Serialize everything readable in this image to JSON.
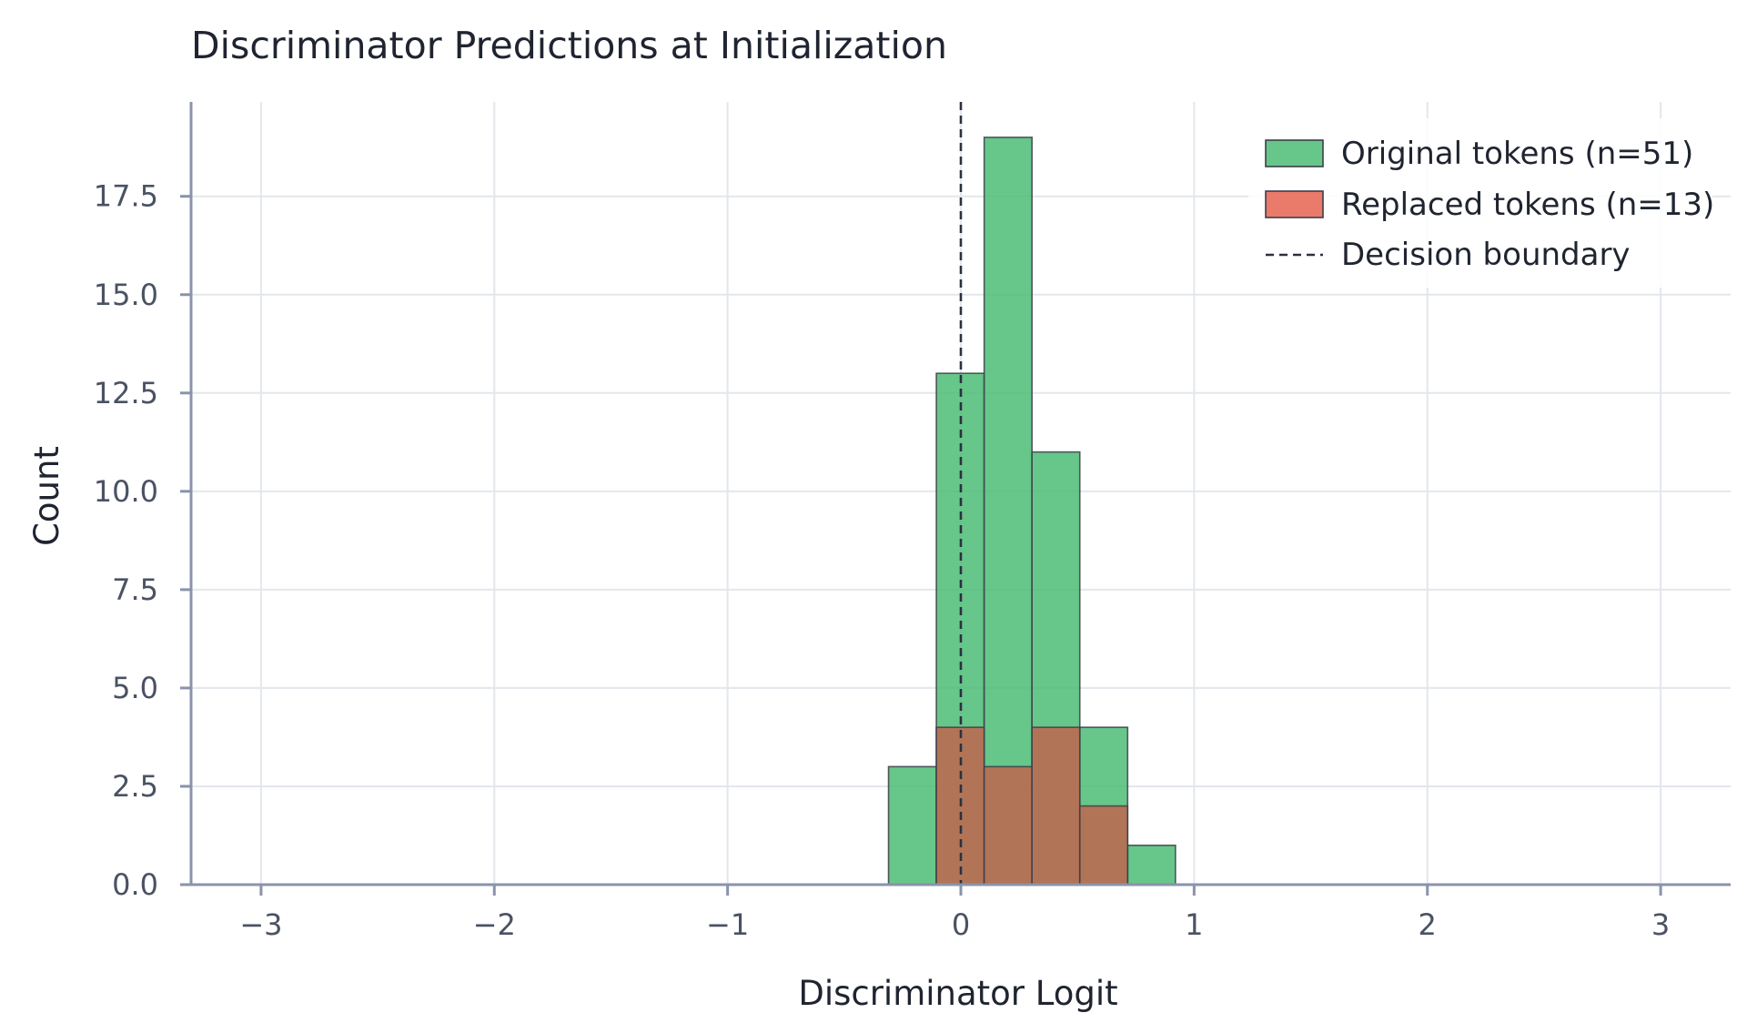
{
  "chart_data": {
    "type": "bar",
    "title": "Discriminator Predictions at Initialization",
    "xlabel": "Discriminator Logit",
    "ylabel": "Count",
    "xlim": [
      -3.3,
      3.3
    ],
    "ylim": [
      0,
      19.9
    ],
    "xticks": [
      -3,
      -2,
      -1,
      0,
      1,
      2,
      3
    ],
    "xtick_labels": [
      "−3",
      "−2",
      "−1",
      "0",
      "1",
      "2",
      "3"
    ],
    "yticks": [
      0,
      2.5,
      5,
      7.5,
      10,
      12.5,
      15,
      17.5
    ],
    "ytick_labels": [
      "0.0",
      "2.5",
      "5.0",
      "7.5",
      "10.0",
      "12.5",
      "15.0",
      "17.5"
    ],
    "grid": true,
    "legend_position": "top-right",
    "bin_edges": [
      -0.31,
      -0.105,
      0.1,
      0.305,
      0.51,
      0.715,
      0.92
    ],
    "series": [
      {
        "name": "Original tokens (n=51)",
        "color": "#4cbc74",
        "values": [
          3,
          13,
          19,
          11,
          4,
          1
        ]
      },
      {
        "name": "Replaced tokens (n=13)",
        "color": "#c0654e",
        "values": [
          0,
          4,
          3,
          4,
          2,
          0
        ]
      }
    ],
    "reference_line": {
      "name": "Decision boundary",
      "x": 0,
      "style": "dashed",
      "color": "#2b3140"
    }
  }
}
